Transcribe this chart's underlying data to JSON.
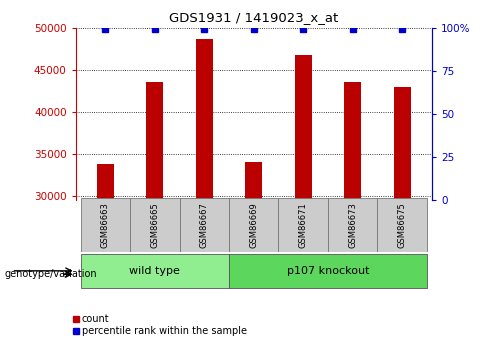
{
  "title": "GDS1931 / 1419023_x_at",
  "samples": [
    "GSM86663",
    "GSM86665",
    "GSM86667",
    "GSM86669",
    "GSM86671",
    "GSM86673",
    "GSM86675"
  ],
  "counts": [
    33800,
    43500,
    48700,
    34000,
    46700,
    43500,
    42900
  ],
  "percentile_ranks": [
    99,
    99,
    99,
    99,
    99,
    99,
    99
  ],
  "groups": [
    {
      "label": "wild type",
      "indices": [
        0,
        1,
        2
      ],
      "color": "#90ee90"
    },
    {
      "label": "p107 knockout",
      "indices": [
        3,
        4,
        5,
        6
      ],
      "color": "#5cd65c"
    }
  ],
  "bar_color": "#bb0000",
  "percentile_color": "#0000cc",
  "ylim_left": [
    29500,
    50000
  ],
  "ylim_right": [
    0,
    100
  ],
  "yticks_left": [
    30000,
    35000,
    40000,
    45000,
    50000
  ],
  "yticks_right": [
    0,
    25,
    50,
    75,
    100
  ],
  "left_axis_color": "#cc0000",
  "right_axis_color": "#0000cc",
  "grid_color": "#000000",
  "group_label_text": "genotype/variation",
  "legend_count_label": "count",
  "legend_percentile_label": "percentile rank within the sample",
  "bar_width": 0.35,
  "sample_box_color": "#cccccc",
  "xlim": [
    -0.6,
    6.6
  ]
}
